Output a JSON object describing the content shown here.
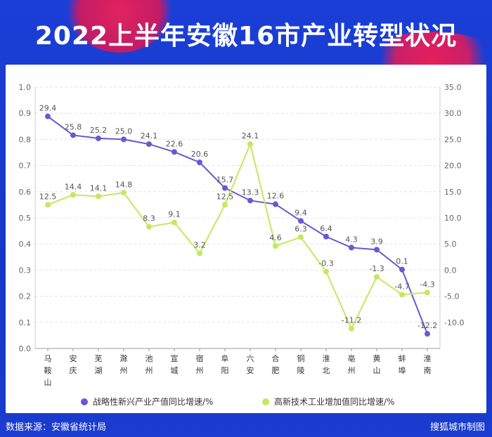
{
  "title": "2022上半年安徽16市产业转型状况",
  "source": "数据来源：安徽省统计局",
  "credit": "搜狐城市制图",
  "colors": {
    "purple": "#6b57d2",
    "green": "#c4e860",
    "background": "#1a3ccf"
  },
  "chart_data": {
    "type": "line",
    "categories": [
      "马鞍山",
      "安庆",
      "芜湖",
      "滁州",
      "池州",
      "宣城",
      "宿州",
      "阜阳",
      "六安",
      "合肥",
      "铜陵",
      "淮北",
      "亳州",
      "黄山",
      "蚌埠",
      "淮南"
    ],
    "left_axis": {
      "ylim": [
        0,
        1.0
      ],
      "ticks": [
        "0.0",
        "0.1",
        "0.2",
        "0.3",
        "0.4",
        "0.5",
        "0.6",
        "0.7",
        "0.8",
        "0.9",
        "1.0"
      ]
    },
    "right_axis": {
      "ylim": [
        -15,
        35
      ],
      "ticks": [
        "-10.0",
        "-5.0",
        "0.0",
        "5.0",
        "10.0",
        "15.0",
        "20.0",
        "25.0",
        "30.0",
        "35.0"
      ]
    },
    "series": [
      {
        "name": "战略性新兴产业产值同比增速/%",
        "color": "#6b57d2",
        "axis": "right",
        "values": [
          29.4,
          25.8,
          25.2,
          25.0,
          24.1,
          22.6,
          20.6,
          15.7,
          13.3,
          12.6,
          9.4,
          6.4,
          4.3,
          3.9,
          0.1,
          -12.2
        ],
        "labels": [
          "29.4",
          "25.8",
          "25.2",
          "25.0",
          "24.1",
          "22.6",
          "20.6",
          "15.7",
          "13.3",
          "12.6",
          "9.4",
          "6.4",
          "4.3",
          "3.9",
          "0.1",
          "-12.2"
        ]
      },
      {
        "name": "高新技术工业增加值同比增速/%",
        "color": "#c4e860",
        "axis": "right",
        "values": [
          12.5,
          14.4,
          14.1,
          14.8,
          8.3,
          9.1,
          3.2,
          12.5,
          24.1,
          4.6,
          6.3,
          -0.3,
          -11.2,
          -1.3,
          -4.7,
          -4.3
        ],
        "labels": [
          "12.5",
          "14.4",
          "14.1",
          "14.8",
          "8.3",
          "9.1",
          "3.2",
          "12.5",
          "24.1",
          "4.6",
          "6.3",
          "-0.3",
          "-11.2",
          "-1.3",
          "-4.7",
          "-4.3"
        ]
      }
    ],
    "grid": "horizontal-dashed",
    "legend": "bottom"
  }
}
